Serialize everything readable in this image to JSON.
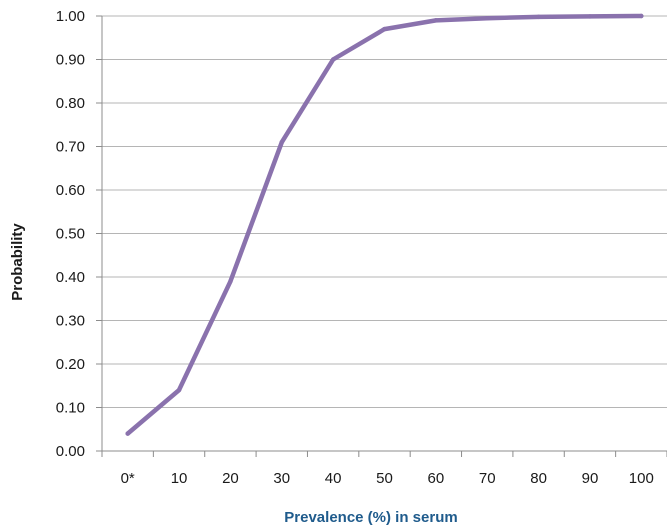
{
  "chart_data": {
    "type": "line",
    "title": "",
    "xlabel": "Prevalence (%) in serum",
    "ylabel": "Probability",
    "categories": [
      "0*",
      "10",
      "20",
      "30",
      "40",
      "50",
      "60",
      "70",
      "80",
      "90",
      "100"
    ],
    "series": [
      {
        "values": [
          0.04,
          0.14,
          0.39,
          0.71,
          0.9,
          0.97,
          0.99,
          0.995,
          0.998,
          0.999,
          1.0
        ]
      }
    ],
    "ylim": [
      0,
      1
    ],
    "yticks": [
      "0.00",
      "0.10",
      "0.20",
      "0.30",
      "0.40",
      "0.50",
      "0.60",
      "0.70",
      "0.80",
      "0.90",
      "1.00"
    ],
    "grid": "horizontal",
    "legend": "none",
    "colors": {
      "line": "#8a72ad",
      "grid": "#b5b5b5",
      "axis": "#8c8c8c",
      "xlabel": "#1f5b8c",
      "ylabel": "#1a1a1a"
    }
  }
}
